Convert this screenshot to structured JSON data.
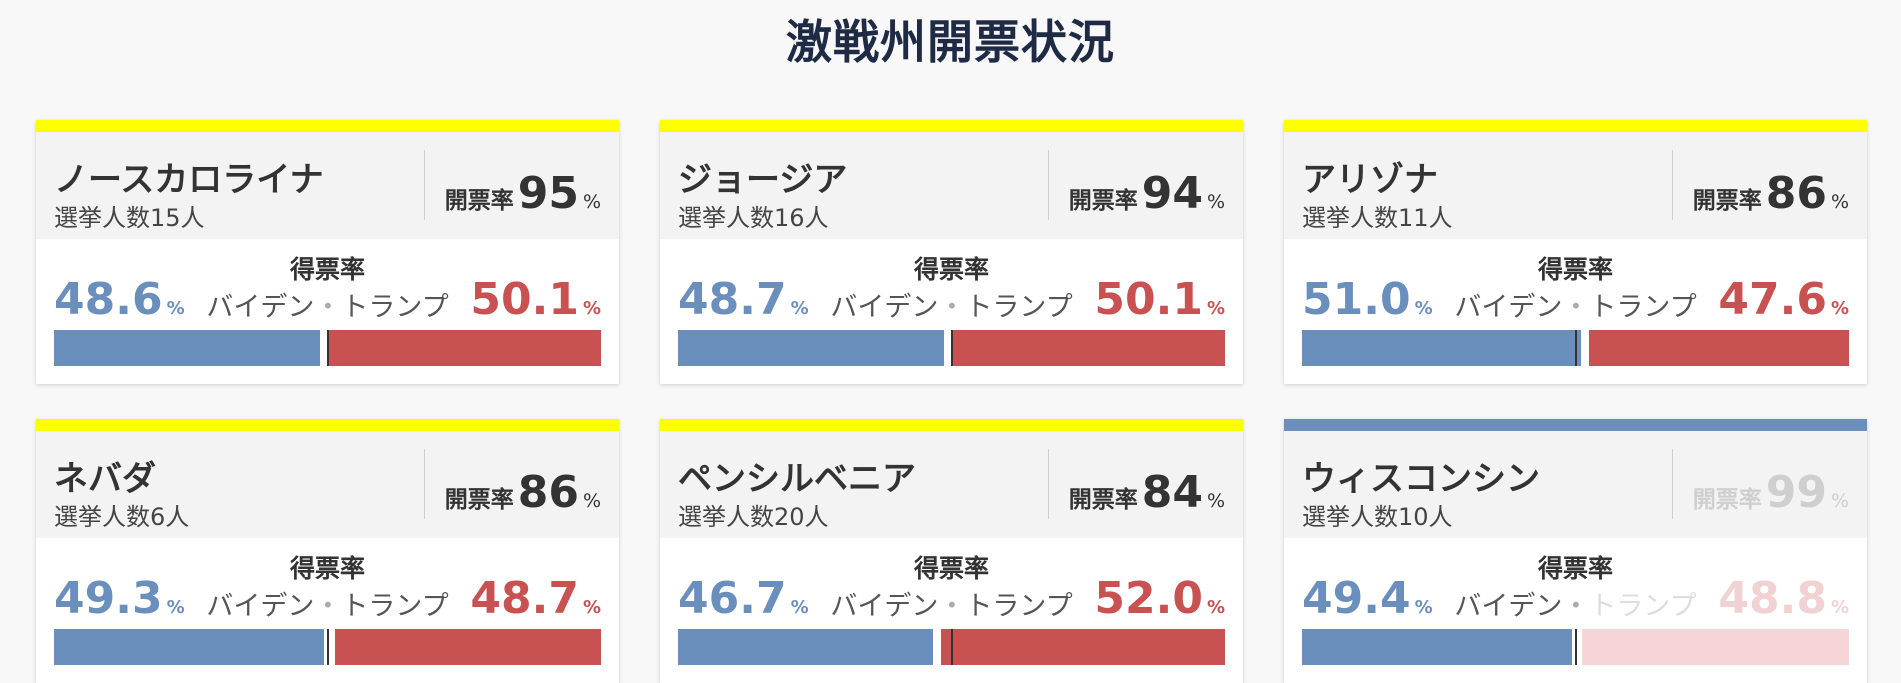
{
  "page_title": "激戦州開票状況",
  "labels": {
    "counted": "開票率",
    "percent": "%",
    "vote_rate": "得票率",
    "biden": "バイデン",
    "separator": "・",
    "trump": "トランプ"
  },
  "colors": {
    "contested_stripe": "#ffff00",
    "biden": "#6a8fbd",
    "trump": "#c85252",
    "trump_dimmed": "#f5d5d7"
  },
  "states": [
    {
      "name": "ノースカロライナ",
      "electors": "選挙人数15人",
      "counted": "95",
      "biden": "48.6",
      "trump": "50.1",
      "biden_value": 48.6,
      "trump_value": 50.1,
      "stripe": "yellow",
      "decided": false
    },
    {
      "name": "ジョージア",
      "electors": "選挙人数16人",
      "counted": "94",
      "biden": "48.7",
      "trump": "50.1",
      "biden_value": 48.7,
      "trump_value": 50.1,
      "stripe": "yellow",
      "decided": false
    },
    {
      "name": "アリゾナ",
      "electors": "選挙人数11人",
      "counted": "86",
      "biden": "51.0",
      "trump": "47.6",
      "biden_value": 51.0,
      "trump_value": 47.6,
      "stripe": "yellow",
      "decided": false
    },
    {
      "name": "ネバダ",
      "electors": "選挙人数6人",
      "counted": "86",
      "biden": "49.3",
      "trump": "48.7",
      "biden_value": 49.3,
      "trump_value": 48.7,
      "stripe": "yellow",
      "decided": false
    },
    {
      "name": "ペンシルベニア",
      "electors": "選挙人数20人",
      "counted": "84",
      "biden": "46.7",
      "trump": "52.0",
      "biden_value": 46.7,
      "trump_value": 52.0,
      "stripe": "yellow",
      "decided": false
    },
    {
      "name": "ウィスコンシン",
      "electors": "選挙人数10人",
      "counted": "99",
      "biden": "49.4",
      "trump": "48.8",
      "biden_value": 49.4,
      "trump_value": 48.8,
      "stripe": "blue",
      "decided": true
    }
  ]
}
